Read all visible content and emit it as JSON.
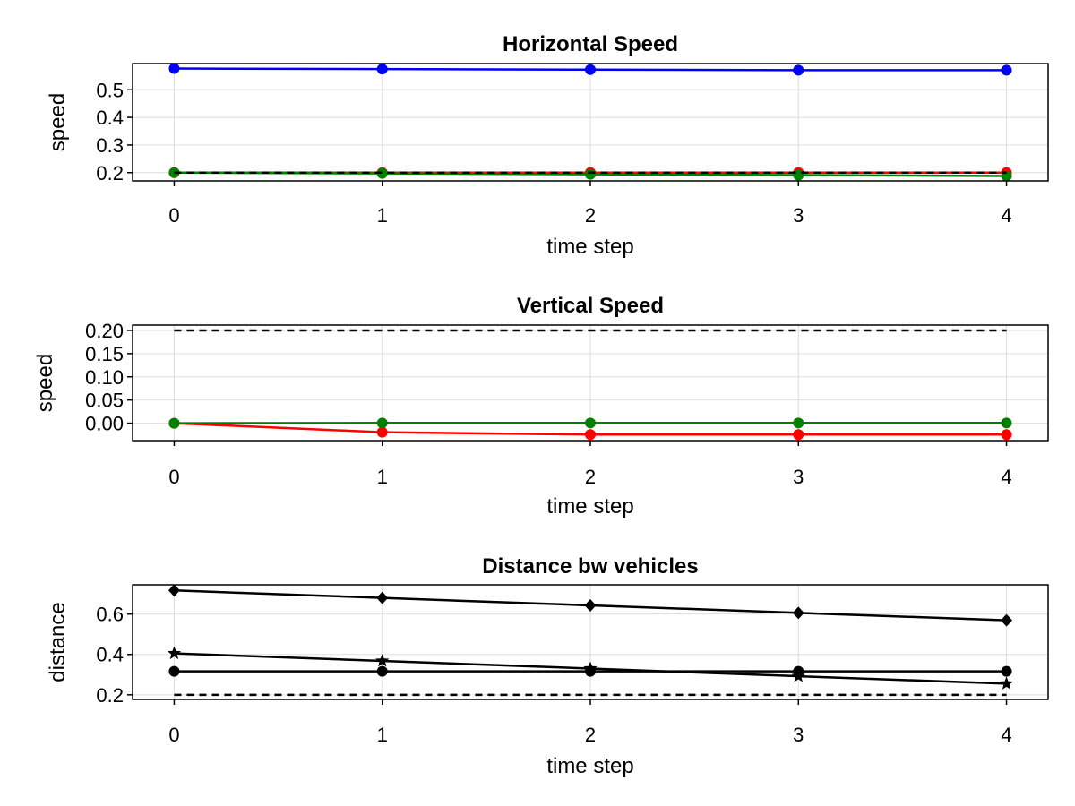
{
  "colors": {
    "blue": "#0000ff",
    "red": "#ff0000",
    "green": "#008000",
    "black": "#000000",
    "grid": "#dddddd"
  },
  "chart_data": [
    {
      "type": "line",
      "title": "Horizontal Speed",
      "xlabel": "time step",
      "ylabel": "speed",
      "x": [
        0,
        1,
        2,
        3,
        4
      ],
      "xticks": [
        "0",
        "1",
        "2",
        "3",
        "4"
      ],
      "yticks": [
        "0.2",
        "0.3",
        "0.4",
        "0.5"
      ],
      "ytick_values": [
        0.2,
        0.3,
        0.4,
        0.5
      ],
      "xlim": [
        -0.2,
        4.2
      ],
      "ylim": [
        0.17,
        0.595
      ],
      "grid": true,
      "series": [
        {
          "color": "#0000ff",
          "marker": "circle",
          "dashed": false,
          "values": [
            0.577,
            0.575,
            0.573,
            0.571,
            0.571
          ]
        },
        {
          "color": "#ff0000",
          "marker": "circle",
          "dashed": false,
          "values": [
            0.2,
            0.2,
            0.2,
            0.2,
            0.2
          ]
        },
        {
          "color": "#008000",
          "marker": "circle",
          "dashed": false,
          "values": [
            0.2,
            0.197,
            0.194,
            0.191,
            0.188
          ]
        },
        {
          "color": "#000000",
          "marker": "none",
          "dashed": true,
          "values": [
            0.2,
            0.2,
            0.2,
            0.2,
            0.2
          ]
        }
      ]
    },
    {
      "type": "line",
      "title": "Vertical Speed",
      "xlabel": "time step",
      "ylabel": "speed",
      "x": [
        0,
        1,
        2,
        3,
        4
      ],
      "xticks": [
        "0",
        "1",
        "2",
        "3",
        "4"
      ],
      "yticks": [
        "0.00",
        "0.05",
        "0.10",
        "0.15",
        "0.20"
      ],
      "ytick_values": [
        0,
        0.05,
        0.1,
        0.15,
        0.2
      ],
      "xlim": [
        -0.2,
        4.2
      ],
      "ylim": [
        -0.0375,
        0.2115
      ],
      "grid": true,
      "series": [
        {
          "color": "#000000",
          "marker": "none",
          "dashed": true,
          "values": [
            0.2,
            0.2,
            0.2,
            0.2,
            0.2
          ]
        },
        {
          "color": "#ff0000",
          "marker": "circle",
          "dashed": false,
          "values": [
            0.0,
            -0.0195,
            -0.0245,
            -0.0245,
            -0.0245
          ]
        },
        {
          "color": "#008000",
          "marker": "circle",
          "dashed": false,
          "values": [
            0.0,
            0.0005,
            0.0005,
            0.0005,
            0.0005
          ]
        }
      ]
    },
    {
      "type": "line",
      "title": "Distance bw vehicles",
      "xlabel": "time step",
      "ylabel": "distance",
      "x": [
        0,
        1,
        2,
        3,
        4
      ],
      "xticks": [
        "0",
        "1",
        "2",
        "3",
        "4"
      ],
      "yticks": [
        "0.2",
        "0.4",
        "0.6"
      ],
      "ytick_values": [
        0.2,
        0.4,
        0.6
      ],
      "xlim": [
        -0.2,
        4.2
      ],
      "ylim": [
        0.177,
        0.745
      ],
      "grid": true,
      "series": [
        {
          "color": "#000000",
          "marker": "diamond",
          "dashed": false,
          "values": [
            0.717,
            0.68,
            0.643,
            0.606,
            0.569
          ]
        },
        {
          "color": "#000000",
          "marker": "star",
          "dashed": false,
          "values": [
            0.405,
            0.368,
            0.33,
            0.292,
            0.255
          ]
        },
        {
          "color": "#000000",
          "marker": "circle",
          "dashed": false,
          "values": [
            0.316,
            0.316,
            0.316,
            0.316,
            0.316
          ]
        },
        {
          "color": "#000000",
          "marker": "none",
          "dashed": true,
          "values": [
            0.2,
            0.2,
            0.2,
            0.2,
            0.2
          ]
        }
      ]
    }
  ]
}
